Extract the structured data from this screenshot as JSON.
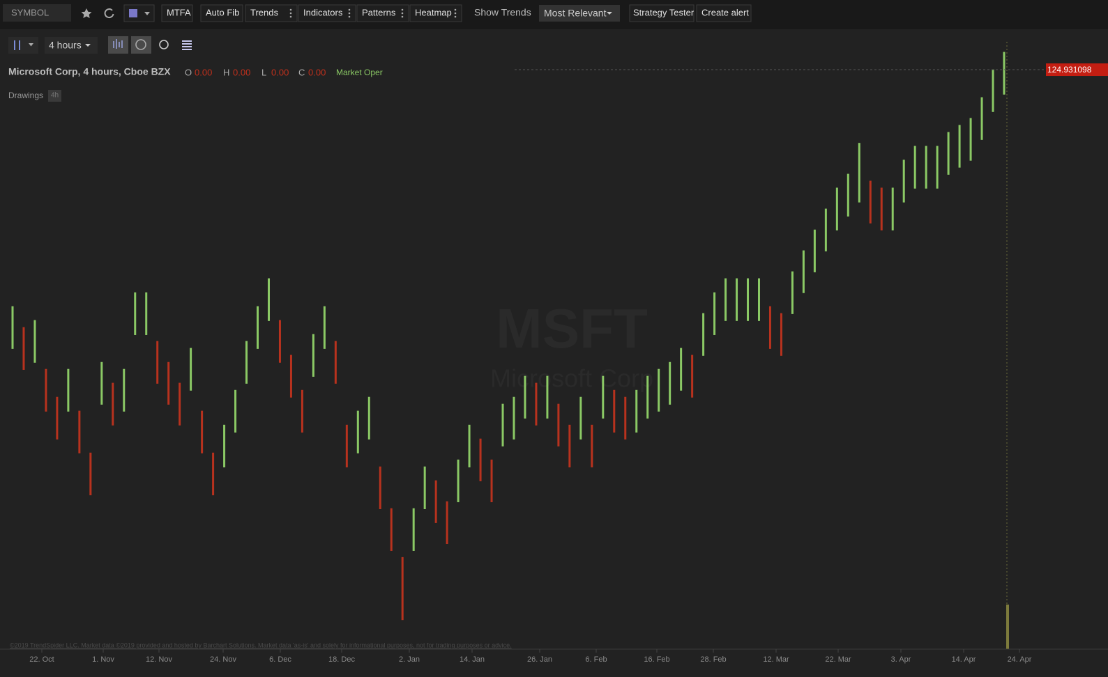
{
  "toolbar": {
    "symbol": "SYMBOL",
    "buttons": [
      "MTFA",
      "Auto Fib",
      "Trends",
      "Indicators",
      "Patterns",
      "Heatmap"
    ],
    "show_trends": "Show Trends",
    "sort": "Most Relevant",
    "strategy": "Strategy Tester",
    "alert": "Create alert"
  },
  "subtoolbar": {
    "interval": "4 hours"
  },
  "legend": {
    "title": "Microsoft Corp, 4 hours, Cboe BZX",
    "ohlc": [
      {
        "label": "O",
        "value": "0.00"
      },
      {
        "label": "H",
        "value": "0.00"
      },
      {
        "label": "L",
        "value": "0.00"
      },
      {
        "label": "C",
        "value": "0.00"
      }
    ],
    "status": "Market Oper"
  },
  "drawings": {
    "label": "Drawings",
    "badge": "4h"
  },
  "chart_data": {
    "type": "candlestick",
    "watermark": "MSFT",
    "watermark_subtitle": "Microsoft Corp",
    "last_price": 124.931098,
    "xlabels": [
      "22. Oct",
      "1. Nov",
      "12. Nov",
      "24. Nov",
      "6. Dec",
      "18. Dec",
      "2. Jan",
      "14. Jan",
      "26. Jan",
      "6. Feb",
      "16. Feb",
      "28. Feb",
      "12. Mar",
      "22. Mar",
      "3. Apr",
      "14. Apr",
      "24. Apr"
    ],
    "high": [
      111.62,
      110.44,
      110.84,
      108.09,
      106.52,
      108.09,
      105.74,
      103.38,
      108.48,
      107.31,
      108.09,
      112.4,
      112.4,
      109.66,
      108.48,
      107.31,
      109.27,
      105.74,
      103.38,
      104.95,
      106.91,
      109.66,
      111.62,
      113.19,
      110.84,
      108.88,
      106.91,
      110.05,
      111.62,
      109.66,
      104.95,
      105.74,
      106.52,
      102.6,
      100.25,
      97.5,
      100.25,
      102.6,
      101.82,
      100.64,
      102.99,
      104.95,
      104.17,
      102.99,
      106.13,
      106.52,
      107.7,
      107.31,
      107.7,
      106.13,
      104.95,
      106.52,
      104.95,
      107.7,
      106.91,
      106.52,
      106.91,
      107.7,
      108.09,
      108.48,
      109.27,
      108.88,
      111.23,
      112.4,
      113.19,
      113.19,
      113.19,
      113.19,
      111.62,
      111.23,
      113.58,
      114.76,
      115.93,
      117.11,
      118.29,
      119.07,
      120.81,
      118.68,
      118.29,
      118.29,
      119.86,
      120.64,
      120.64,
      120.64,
      121.42,
      121.82,
      122.21,
      123.38,
      124.95,
      125.93
    ],
    "low": [
      109.22,
      108.04,
      108.44,
      105.69,
      104.12,
      105.69,
      103.34,
      100.98,
      106.08,
      104.91,
      105.69,
      110.0,
      110.0,
      107.26,
      106.08,
      104.91,
      106.87,
      103.34,
      100.98,
      102.55,
      104.51,
      107.26,
      109.22,
      110.79,
      108.44,
      106.48,
      104.51,
      107.65,
      109.22,
      107.26,
      102.55,
      103.34,
      104.12,
      100.2,
      97.85,
      93.96,
      97.85,
      100.2,
      99.42,
      98.24,
      100.59,
      102.55,
      101.77,
      100.59,
      103.73,
      104.12,
      105.3,
      104.91,
      105.3,
      103.73,
      102.55,
      104.12,
      102.55,
      105.3,
      104.51,
      104.12,
      104.51,
      105.3,
      105.69,
      106.08,
      106.87,
      106.48,
      108.83,
      110.0,
      110.79,
      110.79,
      110.79,
      110.79,
      109.22,
      108.83,
      111.18,
      112.36,
      113.53,
      114.71,
      115.89,
      116.67,
      117.46,
      116.28,
      115.89,
      115.89,
      117.46,
      118.24,
      118.24,
      118.24,
      119.02,
      119.42,
      119.81,
      120.98,
      122.55,
      123.53
    ],
    "ylim": [
      92.4,
      126.5
    ],
    "up_color": "#8bc965",
    "down_color": "#b8321e"
  },
  "footer": "©2019 TrendSpider LLC. Market data ©2019 provided and hosted by Barchart Solutions. Market data 'as-is' and solely for informational purposes, not for trading purposes or advice."
}
